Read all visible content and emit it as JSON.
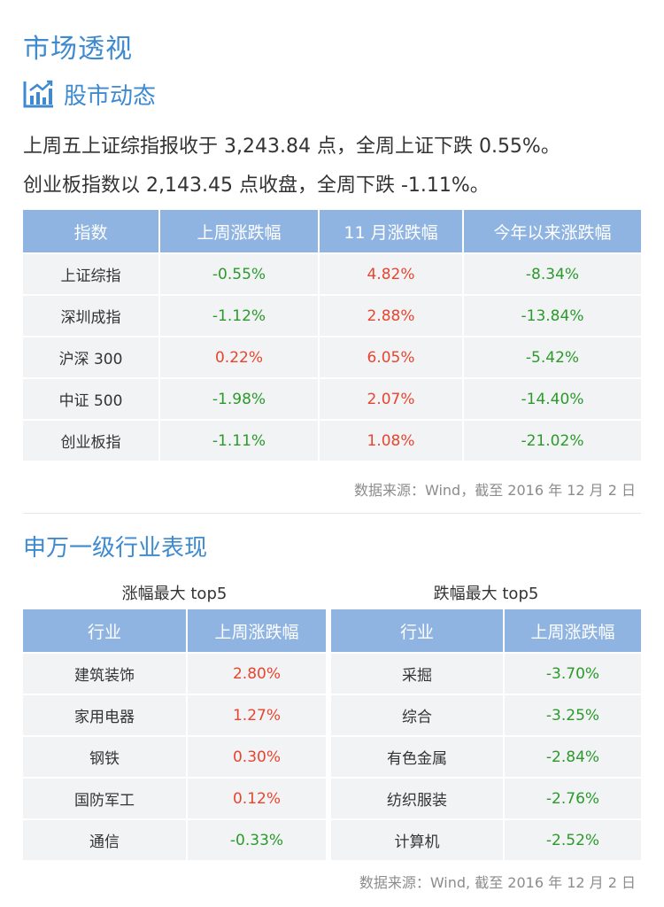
{
  "page": {
    "title": "市场透视"
  },
  "market": {
    "section_title": "股市动态",
    "line1": "上周五上证综指报收于 3,243.84 点，全周上证下跌 0.55%。",
    "line2": "创业板指数以 2,143.45 点收盘，全周下跌 -1.11%。",
    "table": {
      "headers": [
        "指数",
        "上周涨跌幅",
        "11 月涨跌幅",
        "今年以来涨跌幅"
      ],
      "rows": [
        [
          "上证综指",
          "-0.55%",
          "4.82%",
          "-8.34%"
        ],
        [
          "深圳成指",
          "-1.12%",
          "2.88%",
          "-13.84%"
        ],
        [
          "沪深 300",
          "0.22%",
          "6.05%",
          "-5.42%"
        ],
        [
          "中证 500",
          "-1.98%",
          "2.07%",
          "-14.40%"
        ],
        [
          "创业板指",
          "-1.11%",
          "1.08%",
          "-21.02%"
        ]
      ]
    },
    "source": "数据来源：Wind，截至 2016 年 12 月 2 日"
  },
  "industry": {
    "section_title": "申万一级行业表现",
    "gain_caption": "涨幅最大 top5",
    "loss_caption": "跌幅最大 top5",
    "gain_table": {
      "headers": [
        "行业",
        "上周涨跌幅"
      ],
      "rows": [
        [
          "建筑装饰",
          "2.80%"
        ],
        [
          "家用电器",
          "1.27%"
        ],
        [
          "钢铁",
          "0.30%"
        ],
        [
          "国防军工",
          "0.12%"
        ],
        [
          "通信",
          "-0.33%"
        ]
      ]
    },
    "loss_table": {
      "headers": [
        "行业",
        "上周涨跌幅"
      ],
      "rows": [
        [
          "采掘",
          "-3.70%"
        ],
        [
          "综合",
          "-3.25%"
        ],
        [
          "有色金属",
          "-2.84%"
        ],
        [
          "纺织服装",
          "-2.76%"
        ],
        [
          "计算机",
          "-2.52%"
        ]
      ]
    },
    "source": "数据来源：Wind, 截至 2016 年 12 月 2 日"
  },
  "colors": {
    "accent": "#3d8ad0",
    "header_bg": "#8fb4e1",
    "row_bg": "#f2f3f5",
    "up": "#e8452e",
    "down": "#2b9a2b"
  },
  "icons": {
    "section": "bar-chart-trend-icon"
  }
}
